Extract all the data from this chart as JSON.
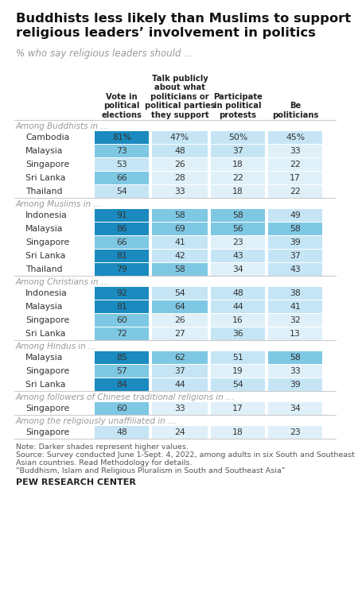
{
  "title": "Buddhists less likely than Muslims to support\nreligious leaders’ involvement in politics",
  "subtitle": "% who say religious leaders should …",
  "col_headers": [
    "Vote in\npolitical\nelections",
    "Talk publicly\nabout what\npoliticians or\npolitical parties\nthey support",
    "Participate\nin political\nprotests",
    "Be\npoliticians"
  ],
  "sections": [
    {
      "label": "Among Buddhists in …",
      "rows": [
        {
          "country": "Cambodia",
          "values": [
            81,
            47,
            50,
            45
          ],
          "show_pct": true
        },
        {
          "country": "Malaysia",
          "values": [
            73,
            48,
            37,
            33
          ],
          "show_pct": false
        },
        {
          "country": "Singapore",
          "values": [
            53,
            26,
            18,
            22
          ],
          "show_pct": false
        },
        {
          "country": "Sri Lanka",
          "values": [
            66,
            28,
            22,
            17
          ],
          "show_pct": false
        },
        {
          "country": "Thailand",
          "values": [
            54,
            33,
            18,
            22
          ],
          "show_pct": false
        }
      ]
    },
    {
      "label": "Among Muslims in …",
      "rows": [
        {
          "country": "Indonesia",
          "values": [
            91,
            58,
            58,
            49
          ],
          "show_pct": false
        },
        {
          "country": "Malaysia",
          "values": [
            86,
            69,
            56,
            58
          ],
          "show_pct": false
        },
        {
          "country": "Singapore",
          "values": [
            66,
            41,
            23,
            39
          ],
          "show_pct": false
        },
        {
          "country": "Sri Lanka",
          "values": [
            81,
            42,
            43,
            37
          ],
          "show_pct": false
        },
        {
          "country": "Thailand",
          "values": [
            79,
            58,
            34,
            43
          ],
          "show_pct": false
        }
      ]
    },
    {
      "label": "Among Christians in …",
      "rows": [
        {
          "country": "Indonesia",
          "values": [
            92,
            54,
            48,
            38
          ],
          "show_pct": false
        },
        {
          "country": "Malaysia",
          "values": [
            81,
            64,
            44,
            41
          ],
          "show_pct": false
        },
        {
          "country": "Singapore",
          "values": [
            60,
            26,
            16,
            32
          ],
          "show_pct": false
        },
        {
          "country": "Sri Lanka",
          "values": [
            72,
            27,
            36,
            13
          ],
          "show_pct": false
        }
      ]
    },
    {
      "label": "Among Hindus in …",
      "rows": [
        {
          "country": "Malaysia",
          "values": [
            85,
            62,
            51,
            58
          ],
          "show_pct": false
        },
        {
          "country": "Singapore",
          "values": [
            57,
            37,
            19,
            33
          ],
          "show_pct": false
        },
        {
          "country": "Sri Lanka",
          "values": [
            84,
            44,
            54,
            39
          ],
          "show_pct": false
        }
      ]
    },
    {
      "label": "Among followers of Chinese traditional religions in …",
      "rows": [
        {
          "country": "Singapore",
          "values": [
            60,
            33,
            17,
            34
          ],
          "show_pct": false
        }
      ]
    },
    {
      "label": "Among the religiously unaffiliated in …",
      "rows": [
        {
          "country": "Singapore",
          "values": [
            48,
            24,
            18,
            23
          ],
          "show_pct": false
        }
      ]
    }
  ],
  "note": "Note: Darker shades represent higher values.",
  "source1": "Source: Survey conducted June 1-Sept. 4, 2022, among adults in six South and Southeast",
  "source2": "Asian countries. Read Methodology for details.",
  "source3": "“Buddhism, Islam and Religious Pluralism in South and Southeast Asia”",
  "credit": "PEW RESEARCH CENTER",
  "color_dark": "#1a8abf",
  "color_mid": "#7ec8e3",
  "color_light": "#c5e5f5",
  "color_vlight": "#dff0f8",
  "bg_color": "#ffffff"
}
